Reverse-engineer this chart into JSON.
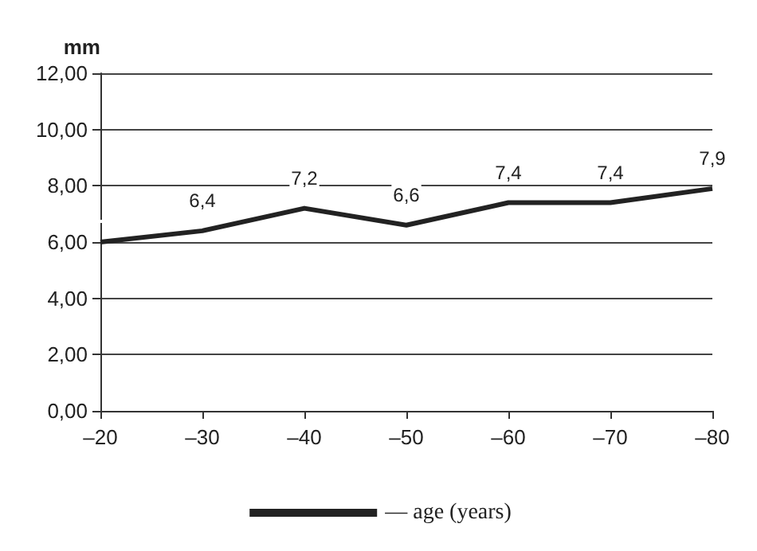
{
  "chart_data": {
    "type": "line",
    "ylabel": "mm",
    "categories": [
      "–20",
      "–30",
      "–40",
      "–50",
      "–60",
      "–70",
      "–80"
    ],
    "series": [
      {
        "name": "— age (years)",
        "color": "#222222",
        "values": [
          6.0,
          6.4,
          7.2,
          6.6,
          7.4,
          7.4,
          7.9
        ],
        "value_labels": [
          null,
          "6,4",
          "7,2",
          "6,6",
          "7,4",
          "7,4",
          "7,9"
        ]
      }
    ],
    "ylim": [
      0,
      12
    ],
    "yticks": [
      {
        "value": 0,
        "label": "0,00"
      },
      {
        "value": 2,
        "label": "2,00"
      },
      {
        "value": 4,
        "label": "4,00"
      },
      {
        "value": 6,
        "label": "6,00"
      },
      {
        "value": 8,
        "label": "8,00"
      },
      {
        "value": 10,
        "label": "10,00"
      },
      {
        "value": 12,
        "label": "12,00"
      }
    ],
    "grid": "y",
    "legend": "bottom"
  }
}
